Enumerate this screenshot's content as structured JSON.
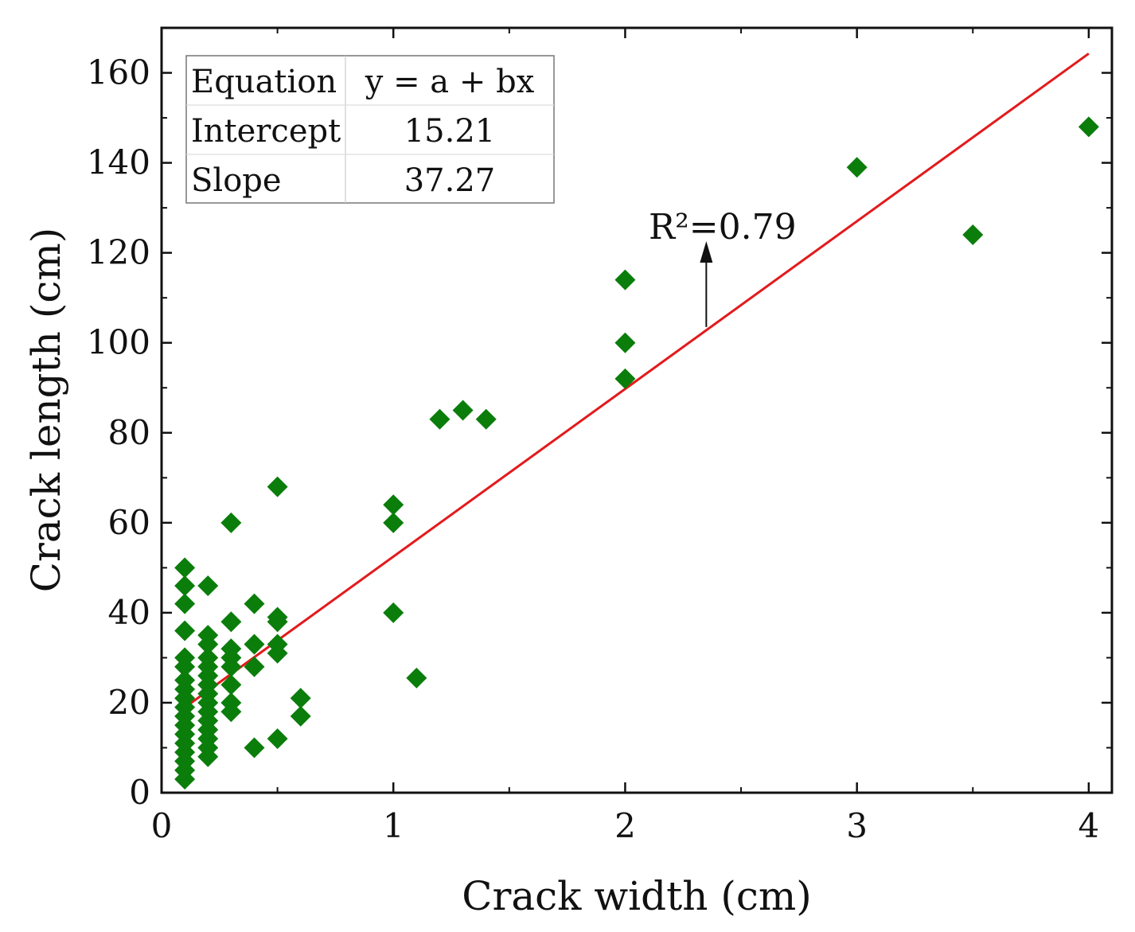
{
  "chart_data": {
    "type": "scatter",
    "title": "",
    "xlabel": "Crack width (cm)",
    "ylabel": "Crack length (cm)",
    "xlim": [
      0,
      4.1
    ],
    "ylim": [
      0,
      170
    ],
    "x_ticks": [
      0,
      1,
      2,
      3,
      4
    ],
    "x_tick_labels": [
      "0",
      "1",
      "2",
      "3",
      "4"
    ],
    "y_ticks": [
      0,
      20,
      40,
      60,
      80,
      100,
      120,
      140,
      160
    ],
    "y_tick_labels": [
      "0",
      "20",
      "40",
      "60",
      "80",
      "100",
      "120",
      "140",
      "160"
    ],
    "grid": false,
    "marker": "diamond",
    "marker_color": "#0b7d0b",
    "fit_color": "#e31a1c",
    "points": [
      [
        0.1,
        3
      ],
      [
        0.1,
        5
      ],
      [
        0.1,
        7
      ],
      [
        0.1,
        9
      ],
      [
        0.1,
        11
      ],
      [
        0.1,
        13
      ],
      [
        0.1,
        15
      ],
      [
        0.1,
        17
      ],
      [
        0.1,
        19
      ],
      [
        0.1,
        21
      ],
      [
        0.1,
        23
      ],
      [
        0.1,
        25
      ],
      [
        0.1,
        28
      ],
      [
        0.1,
        30
      ],
      [
        0.1,
        36
      ],
      [
        0.1,
        42
      ],
      [
        0.1,
        46
      ],
      [
        0.1,
        50
      ],
      [
        0.2,
        8
      ],
      [
        0.2,
        10
      ],
      [
        0.2,
        12
      ],
      [
        0.2,
        14
      ],
      [
        0.2,
        16
      ],
      [
        0.2,
        18
      ],
      [
        0.2,
        20
      ],
      [
        0.2,
        22
      ],
      [
        0.2,
        24
      ],
      [
        0.2,
        26
      ],
      [
        0.2,
        28
      ],
      [
        0.2,
        30
      ],
      [
        0.2,
        33
      ],
      [
        0.2,
        35
      ],
      [
        0.2,
        46
      ],
      [
        0.3,
        18
      ],
      [
        0.3,
        20
      ],
      [
        0.3,
        24
      ],
      [
        0.3,
        28
      ],
      [
        0.3,
        30
      ],
      [
        0.3,
        32
      ],
      [
        0.3,
        38
      ],
      [
        0.3,
        60
      ],
      [
        0.4,
        10
      ],
      [
        0.4,
        28
      ],
      [
        0.4,
        33
      ],
      [
        0.4,
        42
      ],
      [
        0.5,
        12
      ],
      [
        0.5,
        31
      ],
      [
        0.5,
        33
      ],
      [
        0.5,
        38
      ],
      [
        0.5,
        39
      ],
      [
        0.5,
        68
      ],
      [
        0.6,
        17
      ],
      [
        0.6,
        21
      ],
      [
        1.0,
        40
      ],
      [
        1.0,
        60
      ],
      [
        1.0,
        64
      ],
      [
        1.1,
        25.5
      ],
      [
        1.2,
        83
      ],
      [
        1.3,
        85
      ],
      [
        1.4,
        83
      ],
      [
        2.0,
        92
      ],
      [
        2.0,
        100
      ],
      [
        2.0,
        114
      ],
      [
        3.0,
        139
      ],
      [
        3.5,
        124
      ],
      [
        4.0,
        148
      ]
    ],
    "fit_line": {
      "x": [
        0.1,
        4.0
      ],
      "intercept": 15.21,
      "slope": 37.27
    },
    "annotation": {
      "text": "R²=0.79",
      "arrow_x": 2.35
    },
    "stats_table": {
      "rows": [
        [
          "Equation",
          "y = a + bx"
        ],
        [
          "Intercept",
          "15.21"
        ],
        [
          "Slope",
          "37.27"
        ]
      ]
    }
  }
}
